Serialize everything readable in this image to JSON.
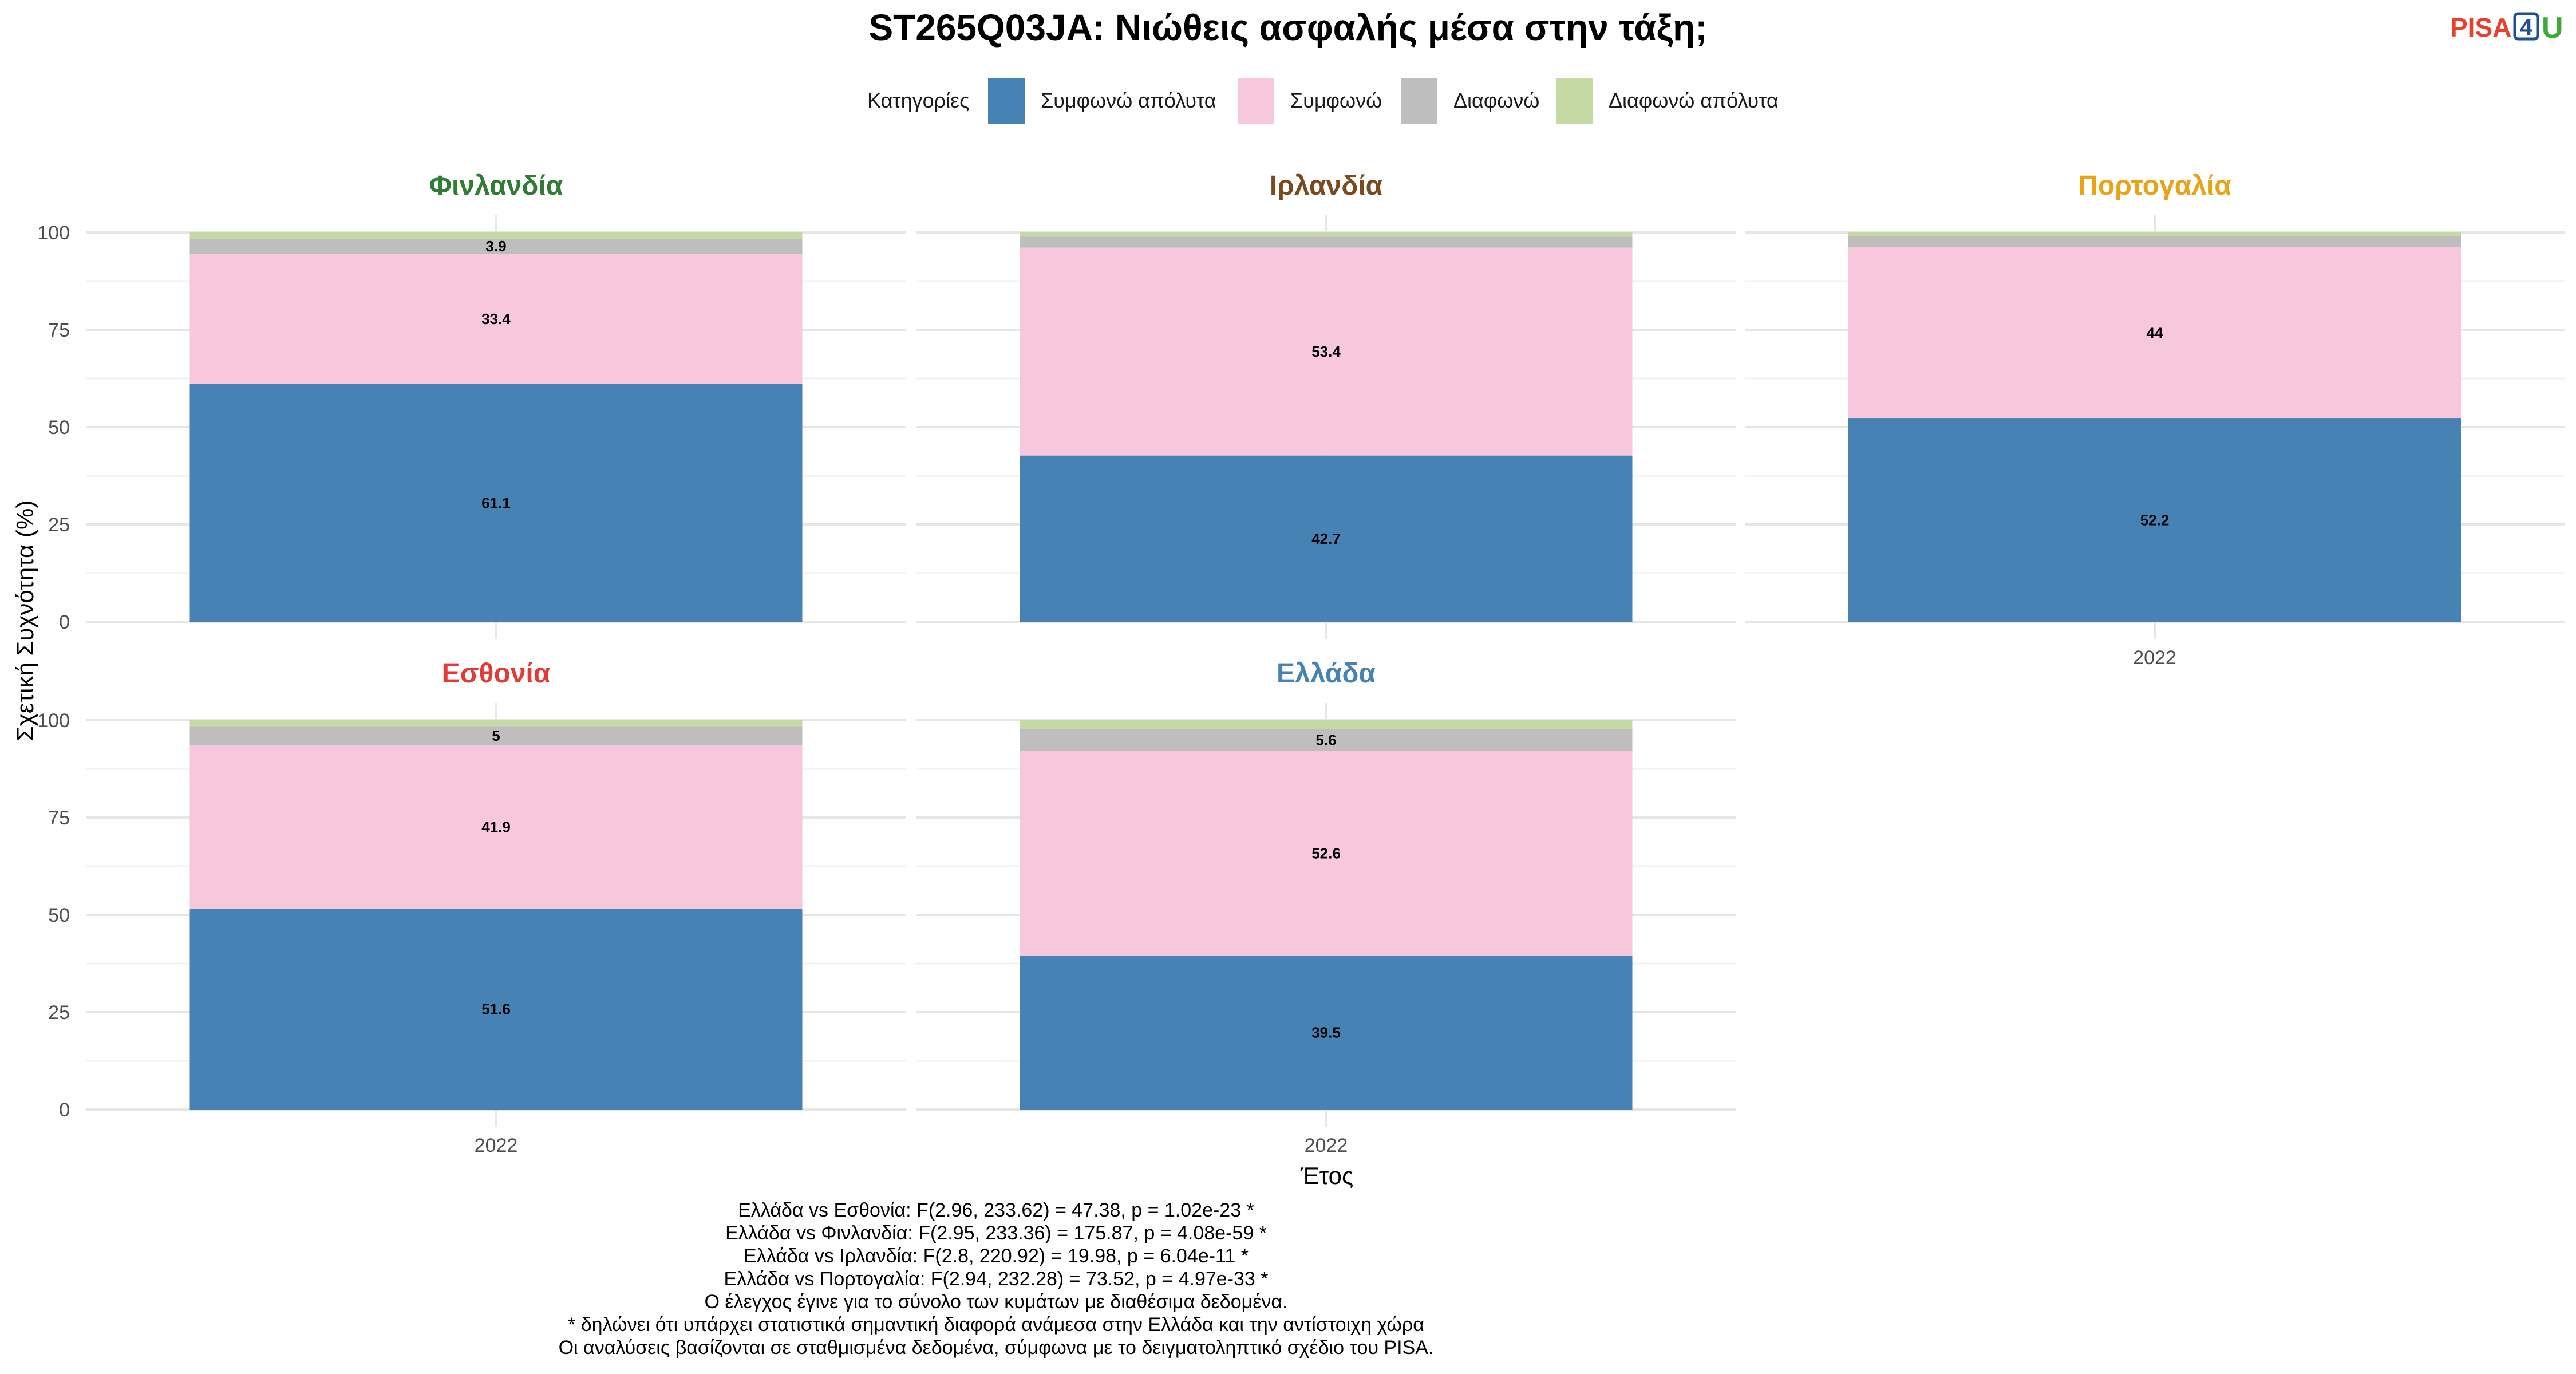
{
  "title": "ST265Q03JA: Νιώθεις ασφαλής μέσα στην τάξη;",
  "logo": {
    "pisa": "PISA",
    "four": "4",
    "u": "U"
  },
  "legend": {
    "title": "Κατηγορίες",
    "items": [
      {
        "label": "Συμφωνώ απόλυτα",
        "color": "#4682b4"
      },
      {
        "label": "Συμφωνώ",
        "color": "#f7c7dc"
      },
      {
        "label": "Διαφωνώ",
        "color": "#bebebe"
      },
      {
        "label": "Διαφωνώ απόλυτα",
        "color": "#c5d9a5"
      }
    ]
  },
  "chart_data": {
    "type": "bar",
    "stacked": true,
    "ylabel": "Σχετική Συχνότητα (%)",
    "xlabel": "Έτος",
    "ylim": [
      0,
      100
    ],
    "yticks": [
      0,
      25,
      50,
      75,
      100
    ],
    "categories": [
      "2022"
    ],
    "panels": [
      {
        "name": "Φινλανδία",
        "color": "#2e7d32",
        "series": [
          {
            "name": "Συμφωνώ απόλυτα",
            "values": [
              61.1
            ],
            "label": "61.1"
          },
          {
            "name": "Συμφωνώ",
            "values": [
              33.4
            ],
            "label": "33.4"
          },
          {
            "name": "Διαφωνώ",
            "values": [
              3.9
            ],
            "label": "3.9"
          },
          {
            "name": "Διαφωνώ απόλυτα",
            "values": [
              1.6
            ],
            "label": ""
          }
        ]
      },
      {
        "name": "Ιρλανδία",
        "color": "#7a4a1e",
        "series": [
          {
            "name": "Συμφωνώ απόλυτα",
            "values": [
              42.7
            ],
            "label": "42.7"
          },
          {
            "name": "Συμφωνώ",
            "values": [
              53.4
            ],
            "label": "53.4"
          },
          {
            "name": "Διαφωνώ",
            "values": [
              2.8
            ],
            "label": ""
          },
          {
            "name": "Διαφωνώ απόλυτα",
            "values": [
              1.1
            ],
            "label": ""
          }
        ]
      },
      {
        "name": "Πορτογαλία",
        "color": "#e8a317",
        "series": [
          {
            "name": "Συμφωνώ απόλυτα",
            "values": [
              52.2
            ],
            "label": "52.2"
          },
          {
            "name": "Συμφωνώ",
            "values": [
              44
            ],
            "label": "44"
          },
          {
            "name": "Διαφωνώ",
            "values": [
              2.8
            ],
            "label": ""
          },
          {
            "name": "Διαφωνώ απόλυτα",
            "values": [
              1.0
            ],
            "label": ""
          }
        ]
      },
      {
        "name": "Εσθονία",
        "color": "#e53935",
        "series": [
          {
            "name": "Συμφωνώ απόλυτα",
            "values": [
              51.6
            ],
            "label": "51.6"
          },
          {
            "name": "Συμφωνώ",
            "values": [
              41.9
            ],
            "label": "41.9"
          },
          {
            "name": "Διαφωνώ",
            "values": [
              5
            ],
            "label": "5"
          },
          {
            "name": "Διαφωνώ απόλυτα",
            "values": [
              1.5
            ],
            "label": ""
          }
        ]
      },
      {
        "name": "Ελλάδα",
        "color": "#4682b4",
        "series": [
          {
            "name": "Συμφωνώ απόλυτα",
            "values": [
              39.5
            ],
            "label": "39.5"
          },
          {
            "name": "Συμφωνώ",
            "values": [
              52.6
            ],
            "label": "52.6"
          },
          {
            "name": "Διαφωνώ",
            "values": [
              5.6
            ],
            "label": "5.6"
          },
          {
            "name": "Διαφωνώ απόλυτα",
            "values": [
              2.3
            ],
            "label": ""
          }
        ]
      }
    ]
  },
  "notes": [
    "Ελλάδα vs Εσθονία: F(2.96, 233.62) = 47.38, p = 1.02e-23 *",
    "Ελλάδα vs Φινλανδία: F(2.95, 233.36) = 175.87, p = 4.08e-59 *",
    "Ελλάδα vs Ιρλανδία: F(2.8, 220.92) = 19.98, p = 6.04e-11 *",
    "Ελλάδα vs Πορτογαλία: F(2.94, 232.28) = 73.52, p = 4.97e-33 *",
    "Ο έλεγχος έγινε για το σύνολο των κυμάτων με διαθέσιμα δεδομένα.",
    "* δηλώνει ότι υπάρχει στατιστικά σημαντική διαφορά ανάμεσα στην Ελλάδα και την αντίστοιχη χώρα",
    "Οι αναλύσεις βασίζονται σε σταθμισμένα δεδομένα, σύμφωνα με το δειγματοληπτικό σχέδιο του PISA."
  ]
}
